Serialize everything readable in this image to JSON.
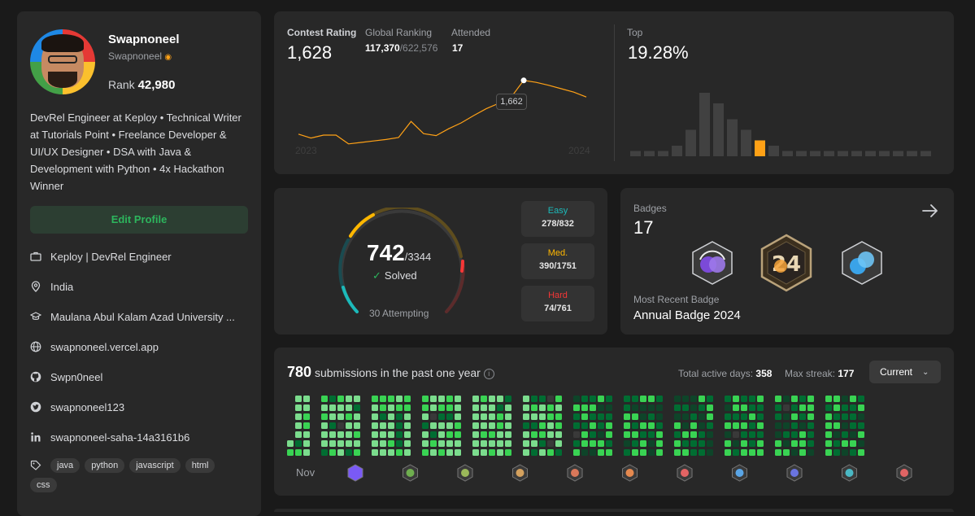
{
  "profile": {
    "name": "Swapnoneel",
    "username": "Swapnoneel",
    "rank_label": "Rank",
    "rank_value": "42,980",
    "bio": "DevRel Engineer at Keploy • Technical Writer at Tutorials Point • Freelance Developer & UI/UX Designer • DSA with Java & Development with Python • 4x Hackathon Winner",
    "edit_label": "Edit Profile",
    "company": "Keploy | DevRel Engineer",
    "location": "India",
    "school": "Maulana Abul Kalam Azad University ...",
    "website": "swapnoneel.vercel.app",
    "github": "Swpn0neel",
    "twitter": "swapnoneel123",
    "linkedin": "swapnoneel-saha-14a3161b6",
    "skills": [
      "java",
      "python",
      "javascript",
      "html",
      "css"
    ]
  },
  "contest": {
    "rating_label": "Contest Rating",
    "rating_value": "1,628",
    "global_label": "Global Ranking",
    "global_value": "117,370",
    "global_total": "/622,576",
    "attended_label": "Attended",
    "attended_value": "17",
    "top_label": "Top",
    "top_value": "19.28%",
    "tooltip": "1,662",
    "year_start": "2023",
    "year_end": "2024"
  },
  "solved": {
    "count": "742",
    "total": "/3344",
    "solved_label": "Solved",
    "attempting": "30 Attempting",
    "easy_label": "Easy",
    "easy_value": "278/832",
    "medium_label": "Med.",
    "medium_value": "390/1751",
    "hard_label": "Hard",
    "hard_value": "74/761"
  },
  "badges": {
    "label": "Badges",
    "count": "17",
    "recent_label": "Most Recent Badge",
    "recent_name": "Annual Badge 2024"
  },
  "submissions": {
    "count": "780",
    "text": "submissions in the past one year",
    "active_label": "Total active days:",
    "active_value": "358",
    "streak_label": "Max streak:",
    "streak_value": "177",
    "period": "Current",
    "month_label": "Nov"
  },
  "colors": {
    "accent_orange": "#ffa116",
    "easy": "#1cbaba",
    "medium": "#ffb700",
    "hard": "#f63737",
    "green": "#2db55d"
  },
  "chart_data": [
    {
      "type": "line",
      "title": "Contest Rating",
      "x_ticks": [
        "2023",
        "2024"
      ],
      "y": [
        1552,
        1544,
        1550,
        1550,
        1532,
        1535,
        1538,
        1541,
        1545,
        1578,
        1553,
        1549,
        1563,
        1575,
        1590,
        1604,
        1615,
        1628,
        1662,
        1658,
        1652,
        1645,
        1638,
        1628
      ],
      "highlight": {
        "value": 1662
      }
    },
    {
      "type": "bar",
      "title": "Top",
      "values": [
        1,
        1,
        1,
        2,
        5,
        12,
        10,
        7,
        5,
        3,
        2,
        1,
        1,
        1,
        1,
        1,
        1,
        1,
        1,
        1,
        1,
        1
      ],
      "highlight_index": 9
    }
  ]
}
